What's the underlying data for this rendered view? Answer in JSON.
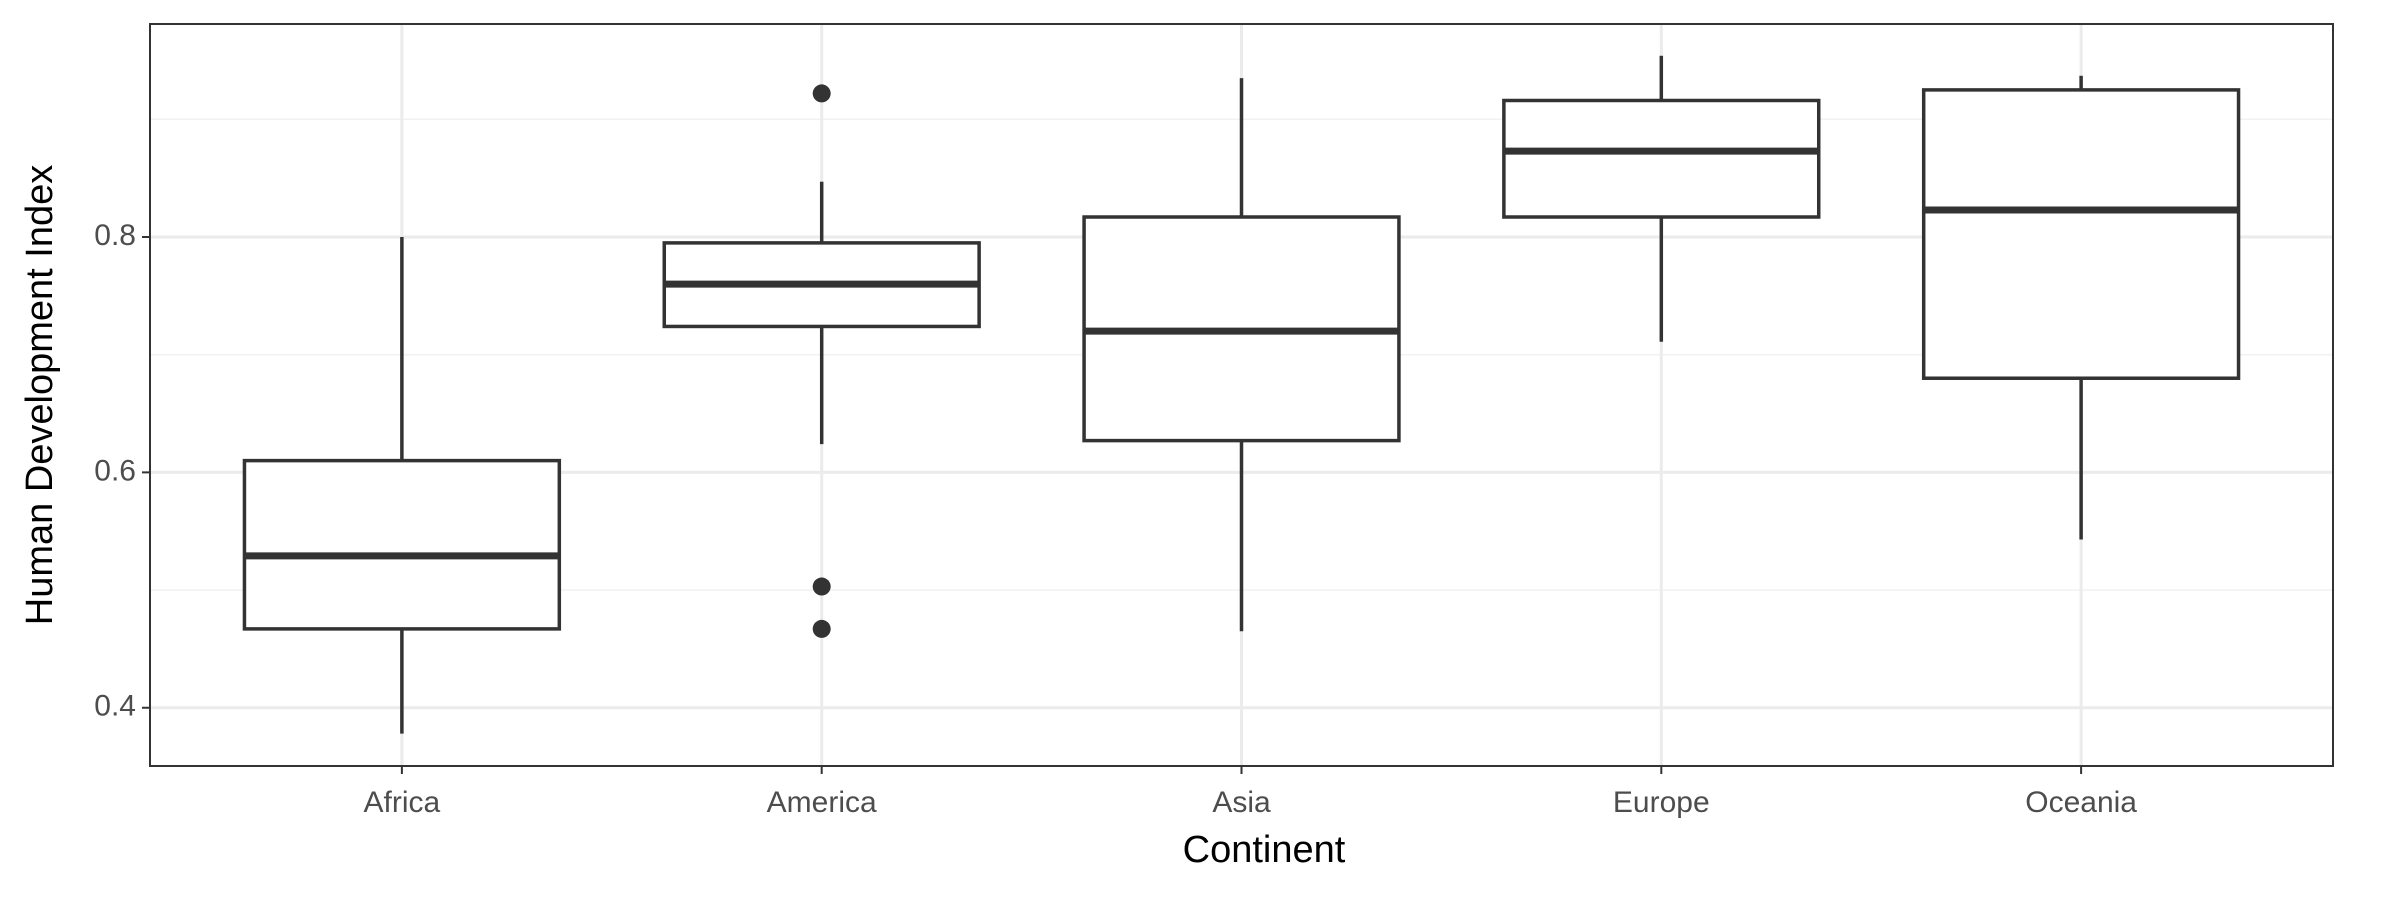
{
  "chart_data": {
    "type": "boxplot",
    "x_label": "Continent",
    "y_label": "Human Development Index",
    "categories": [
      "Africa",
      "America",
      "Asia",
      "Europe",
      "Oceania"
    ],
    "color": "#333333",
    "boxes": [
      {
        "min": 0.378,
        "q1": 0.467,
        "median": 0.529,
        "q3": 0.61,
        "max": 0.8,
        "outliers": []
      },
      {
        "min": 0.624,
        "q1": 0.724,
        "median": 0.76,
        "q3": 0.795,
        "max": 0.847,
        "outliers": [
          0.922,
          0.503,
          0.467
        ]
      },
      {
        "min": 0.465,
        "q1": 0.627,
        "median": 0.72,
        "q3": 0.817,
        "max": 0.935,
        "outliers": []
      },
      {
        "min": 0.711,
        "q1": 0.817,
        "median": 0.873,
        "q3": 0.916,
        "max": 0.954,
        "outliers": []
      },
      {
        "min": 0.543,
        "q1": 0.68,
        "median": 0.823,
        "q3": 0.925,
        "max": 0.937,
        "outliers": []
      }
    ],
    "ylim": [
      0.3505,
      0.981
    ],
    "yticks": [
      0.4,
      0.6,
      0.8
    ],
    "y_minor_grid": [
      0.5,
      0.7,
      0.9
    ],
    "grid": true
  }
}
